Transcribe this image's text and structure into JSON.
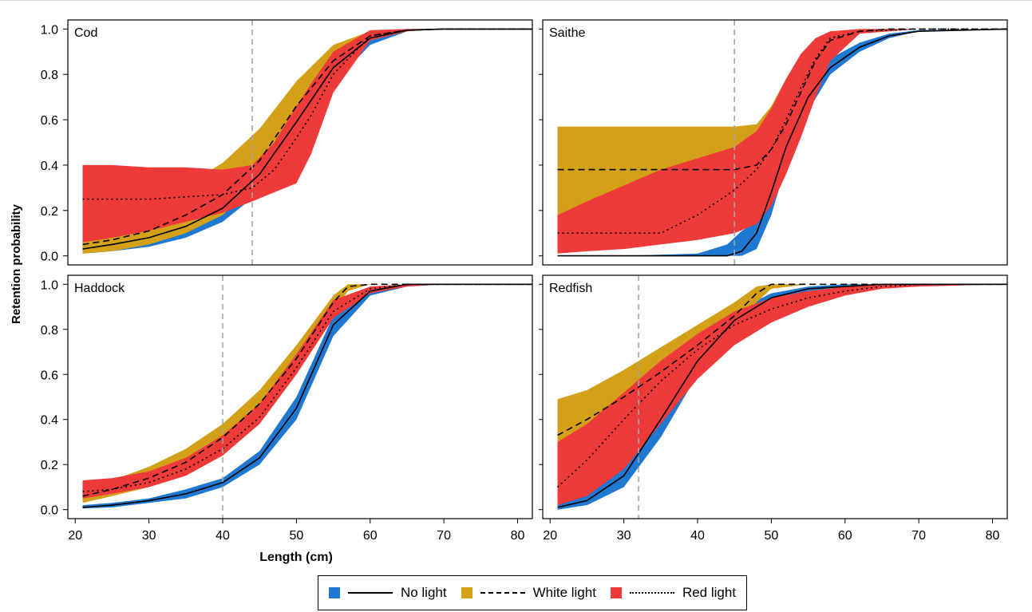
{
  "chart_data": {
    "type": "line",
    "xlabel": "Length (cm)",
    "ylabel": "Retention probability",
    "xlim": [
      19,
      82
    ],
    "ylim": [
      -0.04,
      1.04
    ],
    "xticks": [
      20,
      30,
      40,
      50,
      60,
      70,
      80
    ],
    "yticks": [
      0.0,
      0.2,
      0.4,
      0.6,
      0.8,
      1.0
    ],
    "ytick_labels": [
      "0.0",
      "0.2",
      "0.4",
      "0.6",
      "0.8",
      "1.0"
    ],
    "legend_position": "bottom-center",
    "legend": [
      {
        "label": "No light",
        "color": "#1f78d1",
        "line": "solid"
      },
      {
        "label": "White light",
        "color": "#d4a017",
        "line": "dashed"
      },
      {
        "label": "Red light",
        "color": "#ef3a3a",
        "line": "dotted"
      }
    ],
    "panels": [
      {
        "name": "Cod",
        "vline": 44,
        "series": [
          {
            "name": "No light",
            "x": [
              21,
              25,
              30,
              35,
              40,
              45,
              50,
              55,
              60,
              65,
              70,
              82
            ],
            "y": [
              0.03,
              0.05,
              0.08,
              0.13,
              0.21,
              0.36,
              0.59,
              0.83,
              0.96,
              0.995,
              1,
              1
            ],
            "lower": [
              0.01,
              0.02,
              0.04,
              0.08,
              0.15,
              0.28,
              0.5,
              0.76,
              0.93,
              0.99,
              1,
              1
            ],
            "upper": [
              0.06,
              0.08,
              0.13,
              0.2,
              0.3,
              0.46,
              0.68,
              0.88,
              0.98,
              1,
              1,
              1
            ]
          },
          {
            "name": "White light",
            "x": [
              21,
              25,
              30,
              35,
              40,
              45,
              50,
              55,
              60,
              65,
              70,
              82
            ],
            "y": [
              0.05,
              0.07,
              0.11,
              0.18,
              0.27,
              0.42,
              0.66,
              0.86,
              0.97,
              0.995,
              1,
              1
            ],
            "lower": [
              0.01,
              0.02,
              0.05,
              0.1,
              0.18,
              0.33,
              0.56,
              0.79,
              0.95,
              0.99,
              1,
              1
            ],
            "upper": [
              0.12,
              0.16,
              0.23,
              0.31,
              0.41,
              0.56,
              0.77,
              0.93,
              0.99,
              1,
              1,
              1
            ]
          },
          {
            "name": "Red light",
            "x": [
              21,
              25,
              30,
              35,
              40,
              44,
              47,
              50,
              52,
              55,
              60,
              65,
              70,
              82
            ],
            "y": [
              0.25,
              0.25,
              0.25,
              0.26,
              0.27,
              0.3,
              0.38,
              0.52,
              0.62,
              0.8,
              0.97,
              0.995,
              1,
              1
            ],
            "lower": [
              0.06,
              0.08,
              0.11,
              0.15,
              0.19,
              0.24,
              0.28,
              0.32,
              0.45,
              0.72,
              0.95,
              0.99,
              1,
              1
            ],
            "upper": [
              0.4,
              0.4,
              0.39,
              0.39,
              0.38,
              0.4,
              0.5,
              0.66,
              0.76,
              0.9,
              0.995,
              1,
              1,
              1
            ]
          }
        ]
      },
      {
        "name": "Saithe",
        "vline": 45,
        "series": [
          {
            "name": "No light",
            "x": [
              21,
              30,
              40,
              44,
              46,
              48,
              50,
              52,
              55,
              58,
              62,
              66,
              70,
              82
            ],
            "y": [
              0,
              0,
              0,
              0,
              0.02,
              0.1,
              0.28,
              0.48,
              0.7,
              0.83,
              0.92,
              0.97,
              0.99,
              1
            ],
            "lower": [
              0,
              0,
              0,
              0,
              0,
              0.03,
              0.18,
              0.4,
              0.64,
              0.8,
              0.9,
              0.96,
              0.99,
              1
            ],
            "upper": [
              0,
              0,
              0.01,
              0.05,
              0.11,
              0.15,
              0.34,
              0.54,
              0.76,
              0.87,
              0.94,
              0.98,
              0.995,
              1
            ]
          },
          {
            "name": "White light",
            "x": [
              21,
              30,
              40,
              45,
              48,
              50,
              52,
              54,
              56,
              58,
              62,
              66,
              70,
              82
            ],
            "y": [
              0.38,
              0.38,
              0.38,
              0.38,
              0.4,
              0.47,
              0.58,
              0.72,
              0.86,
              0.95,
              0.99,
              1,
              1,
              1
            ],
            "lower": [
              0.07,
              0.15,
              0.27,
              0.32,
              0.35,
              0.4,
              0.5,
              0.66,
              0.82,
              0.93,
              0.99,
              1,
              1,
              1
            ],
            "upper": [
              0.57,
              0.57,
              0.57,
              0.57,
              0.58,
              0.66,
              0.78,
              0.88,
              0.95,
              0.99,
              1,
              1,
              1,
              1
            ]
          },
          {
            "name": "Red light",
            "x": [
              21,
              25,
              30,
              35,
              40,
              45,
              48,
              50,
              52,
              54,
              56,
              58,
              62,
              70,
              82
            ],
            "y": [
              0.1,
              0.1,
              0.1,
              0.1,
              0.18,
              0.29,
              0.38,
              0.47,
              0.6,
              0.74,
              0.87,
              0.96,
              0.99,
              1,
              1
            ],
            "lower": [
              0.01,
              0.02,
              0.03,
              0.05,
              0.07,
              0.1,
              0.14,
              0.22,
              0.36,
              0.52,
              0.7,
              0.86,
              0.98,
              1,
              1
            ],
            "upper": [
              0.18,
              0.24,
              0.31,
              0.38,
              0.43,
              0.48,
              0.55,
              0.65,
              0.78,
              0.89,
              0.96,
              0.99,
              1,
              1,
              1
            ]
          }
        ]
      },
      {
        "name": "Haddock",
        "vline": 40,
        "series": [
          {
            "name": "No light",
            "x": [
              21,
              25,
              30,
              35,
              40,
              45,
              50,
              55,
              60,
              65,
              70,
              82
            ],
            "y": [
              0.01,
              0.02,
              0.04,
              0.07,
              0.12,
              0.23,
              0.45,
              0.82,
              0.97,
              1,
              1,
              1
            ],
            "lower": [
              0.005,
              0.01,
              0.03,
              0.05,
              0.1,
              0.2,
              0.4,
              0.77,
              0.95,
              0.99,
              1,
              1
            ],
            "upper": [
              0.02,
              0.03,
              0.05,
              0.09,
              0.14,
              0.26,
              0.5,
              0.86,
              0.98,
              1,
              1,
              1
            ]
          },
          {
            "name": "White light",
            "x": [
              21,
              25,
              30,
              35,
              40,
              45,
              50,
              55,
              57,
              60,
              65,
              82
            ],
            "y": [
              0.06,
              0.09,
              0.14,
              0.21,
              0.32,
              0.47,
              0.67,
              0.92,
              0.99,
              1,
              1,
              1
            ],
            "lower": [
              0.03,
              0.06,
              0.1,
              0.16,
              0.26,
              0.41,
              0.61,
              0.88,
              0.97,
              1,
              1,
              1
            ],
            "upper": [
              0.1,
              0.13,
              0.19,
              0.27,
              0.38,
              0.53,
              0.73,
              0.95,
              1,
              1,
              1,
              1
            ]
          },
          {
            "name": "Red light",
            "x": [
              21,
              25,
              30,
              35,
              40,
              45,
              50,
              55,
              60,
              65,
              70,
              82
            ],
            "y": [
              0.08,
              0.09,
              0.12,
              0.18,
              0.27,
              0.41,
              0.63,
              0.88,
              0.98,
              1,
              1,
              1
            ],
            "lower": [
              0.05,
              0.07,
              0.1,
              0.15,
              0.24,
              0.38,
              0.6,
              0.85,
              0.96,
              0.99,
              1,
              1
            ],
            "upper": [
              0.13,
              0.14,
              0.17,
              0.23,
              0.33,
              0.47,
              0.69,
              0.93,
              0.99,
              1,
              1,
              1
            ]
          }
        ]
      },
      {
        "name": "Redfish",
        "vline": 32,
        "series": [
          {
            "name": "No light",
            "x": [
              21,
              25,
              30,
              35,
              40,
              45,
              50,
              55,
              60,
              65,
              70,
              82
            ],
            "y": [
              0.01,
              0.04,
              0.15,
              0.4,
              0.66,
              0.84,
              0.94,
              0.98,
              0.99,
              1,
              1,
              1
            ],
            "lower": [
              0,
              0.02,
              0.1,
              0.32,
              0.6,
              0.8,
              0.92,
              0.97,
              0.99,
              1,
              1,
              1
            ],
            "upper": [
              0.02,
              0.07,
              0.22,
              0.48,
              0.72,
              0.88,
              0.96,
              0.99,
              1,
              1,
              1,
              1
            ]
          },
          {
            "name": "White light",
            "x": [
              21,
              25,
              30,
              35,
              40,
              45,
              48,
              50,
              55,
              60,
              82
            ],
            "y": [
              0.33,
              0.4,
              0.5,
              0.61,
              0.73,
              0.86,
              0.96,
              1,
              1,
              1,
              1
            ],
            "lower": [
              0.15,
              0.24,
              0.36,
              0.5,
              0.64,
              0.8,
              0.92,
              0.98,
              1,
              1,
              1
            ],
            "upper": [
              0.49,
              0.53,
              0.62,
              0.72,
              0.82,
              0.92,
              0.99,
              1,
              1,
              1,
              1
            ]
          },
          {
            "name": "Red light",
            "x": [
              21,
              25,
              30,
              35,
              40,
              45,
              50,
              55,
              60,
              65,
              70,
              82
            ],
            "y": [
              0.1,
              0.22,
              0.4,
              0.57,
              0.71,
              0.82,
              0.89,
              0.94,
              0.97,
              0.99,
              1,
              1
            ],
            "lower": [
              0.02,
              0.06,
              0.18,
              0.38,
              0.58,
              0.73,
              0.83,
              0.9,
              0.95,
              0.98,
              0.99,
              1
            ],
            "upper": [
              0.3,
              0.38,
              0.52,
              0.66,
              0.78,
              0.88,
              0.94,
              0.97,
              0.99,
              1,
              1,
              1
            ]
          }
        ]
      }
    ]
  }
}
